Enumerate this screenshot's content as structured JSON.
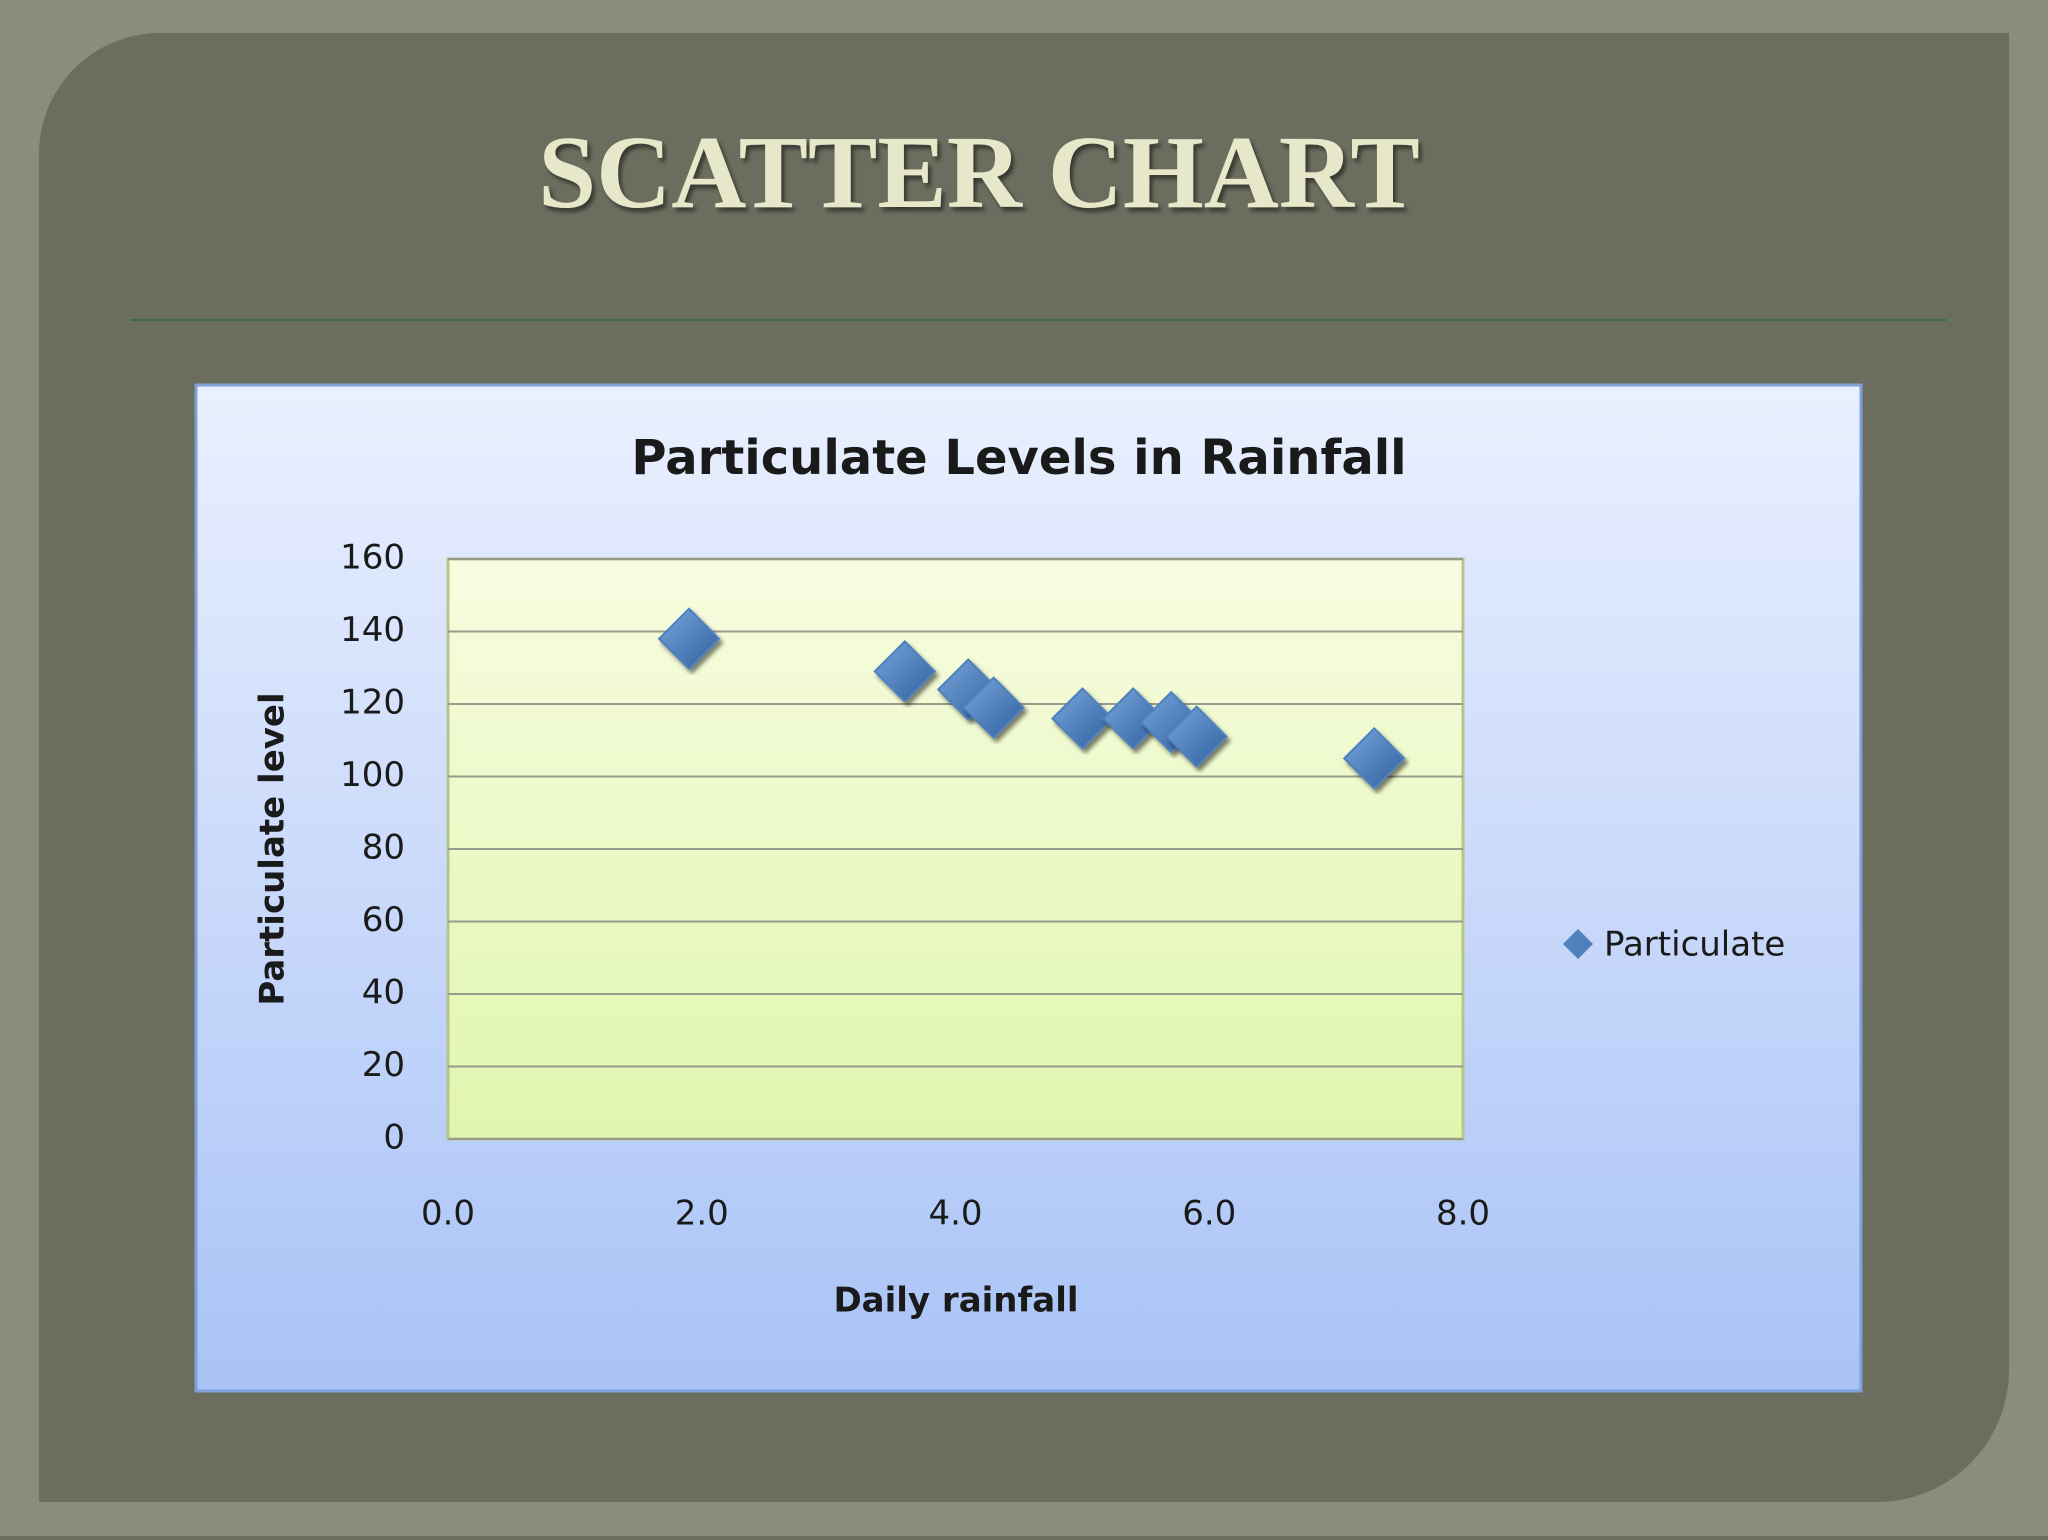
{
  "slide_title": "SCATTER CHART",
  "chart_data": {
    "type": "scatter",
    "title": "Particulate Levels in Rainfall",
    "x_label": "Daily rainfall",
    "y_label": "Particulate level",
    "series": [
      {
        "name": "Particulate",
        "color": "#4f81bd",
        "x": [
          1.9,
          3.6,
          4.1,
          4.3,
          5.0,
          5.4,
          5.7,
          5.9,
          7.3
        ],
        "values": [
          138,
          129,
          124,
          119,
          116,
          116,
          115,
          111,
          105
        ]
      }
    ],
    "xlim": [
      0,
      8
    ],
    "xticks": [
      {
        "value": 0,
        "label": "0.0"
      },
      {
        "value": 2,
        "label": "2.0"
      },
      {
        "value": 4,
        "label": "4.0"
      },
      {
        "value": 6,
        "label": "6.0"
      },
      {
        "value": 8,
        "label": "8.0"
      }
    ],
    "ylim": [
      0,
      160
    ],
    "yticks": [
      0,
      20,
      40,
      60,
      80,
      100,
      120,
      140,
      160
    ],
    "grid": true,
    "legend": "right"
  }
}
